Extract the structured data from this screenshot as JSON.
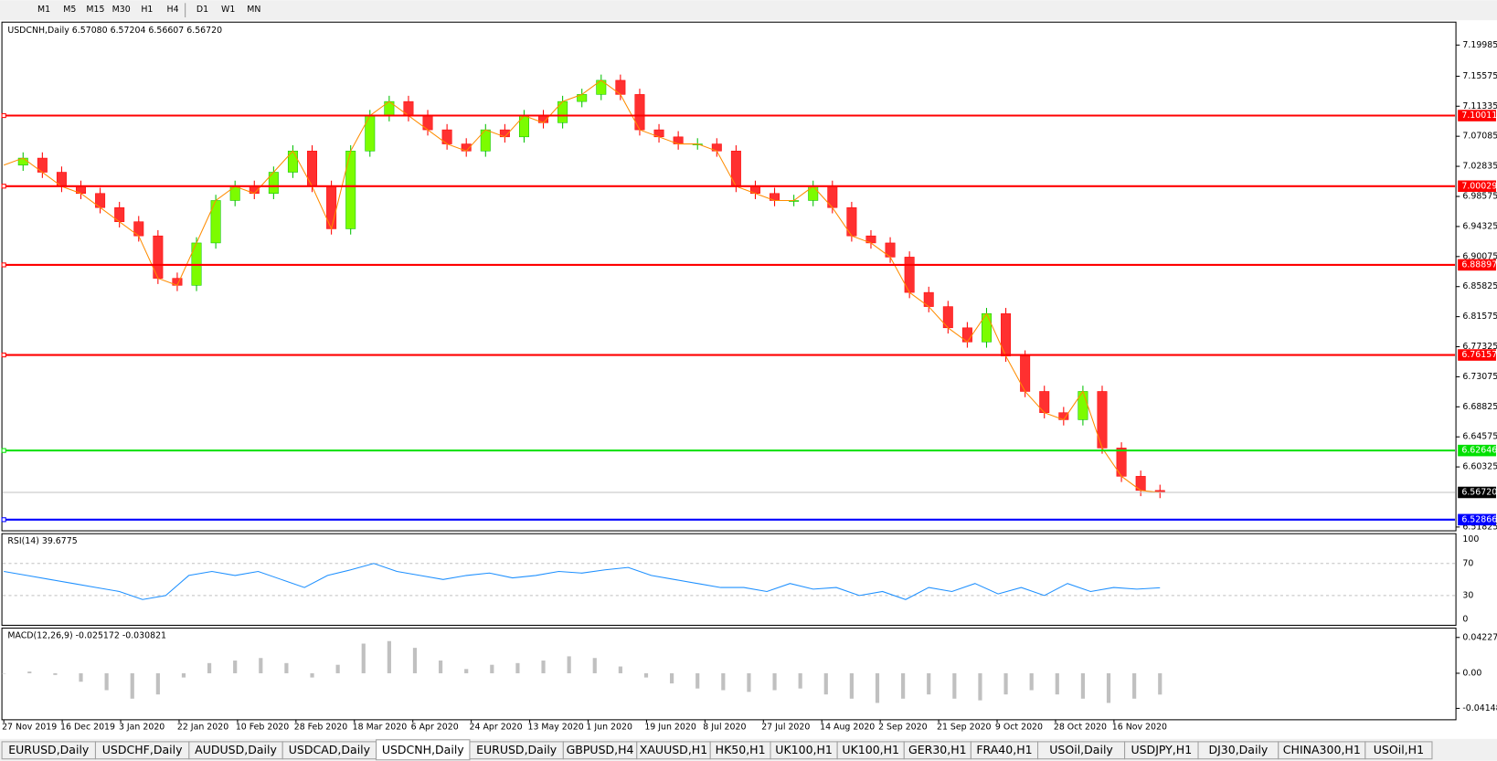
{
  "toolbar": {
    "timeframes": [
      "M1",
      "M5",
      "M15",
      "M30",
      "H1",
      "H4",
      "D1",
      "W1",
      "MN"
    ]
  },
  "chart": {
    "header": "USDCNH,Daily  6.57080 6.57204 6.56607 6.56720",
    "ylim": [
      6.5129,
      7.2309
    ],
    "yticks": [
      7.19985,
      7.15575,
      7.11335,
      7.07085,
      7.02835,
      6.98575,
      6.94325,
      6.90075,
      6.85825,
      6.81575,
      6.77325,
      6.73075,
      6.68825,
      6.64575,
      6.60325,
      6.51825
    ],
    "levels": [
      {
        "value": 7.10011,
        "color": "#ff0000"
      },
      {
        "value": 7.00029,
        "color": "#ff0000"
      },
      {
        "value": 6.88897,
        "color": "#ff0000"
      },
      {
        "value": 6.76157,
        "color": "#ff0000"
      },
      {
        "value": 6.62646,
        "color": "#00e000"
      },
      {
        "value": 6.52866,
        "color": "#0000ff"
      }
    ],
    "current_price": {
      "value": 6.5672,
      "label": "6.56720"
    },
    "closes": [
      7.03,
      7.04,
      7.02,
      7.0,
      6.99,
      6.97,
      6.95,
      6.93,
      6.87,
      6.86,
      6.92,
      6.98,
      7.0,
      6.99,
      7.02,
      7.05,
      7.0,
      6.94,
      7.05,
      7.1,
      7.12,
      7.1,
      7.08,
      7.06,
      7.05,
      7.08,
      7.07,
      7.1,
      7.09,
      7.12,
      7.13,
      7.15,
      7.13,
      7.08,
      7.07,
      7.06,
      7.06,
      7.05,
      7.0,
      6.99,
      6.98,
      6.98,
      7.0,
      6.97,
      6.93,
      6.92,
      6.9,
      6.85,
      6.83,
      6.8,
      6.78,
      6.82,
      6.76,
      6.71,
      6.68,
      6.67,
      6.71,
      6.63,
      6.59,
      6.57,
      6.5672
    ],
    "x_labels": [
      "27 Nov 2019",
      "16 Dec 2019",
      "3 Jan 2020",
      "22 Jan 2020",
      "10 Feb 2020",
      "28 Feb 2020",
      "18 Mar 2020",
      "6 Apr 2020",
      "24 Apr 2020",
      "13 May 2020",
      "1 Jun 2020",
      "19 Jun 2020",
      "8 Jul 2020",
      "27 Jul 2020",
      "14 Aug 2020",
      "2 Sep 2020",
      "21 Sep 2020",
      "9 Oct 2020",
      "28 Oct 2020",
      "16 Nov 2020"
    ]
  },
  "rsi": {
    "header": "RSI(14) 39.6775",
    "ylim": [
      0,
      100
    ],
    "yticks": [
      100,
      70,
      30,
      0
    ],
    "values": [
      60,
      55,
      50,
      45,
      40,
      35,
      25,
      30,
      55,
      60,
      55,
      60,
      50,
      40,
      55,
      62,
      70,
      60,
      55,
      50,
      55,
      58,
      52,
      55,
      60,
      58,
      62,
      65,
      55,
      50,
      45,
      40,
      40,
      35,
      45,
      38,
      40,
      30,
      35,
      25,
      40,
      35,
      45,
      32,
      40,
      30,
      45,
      35,
      40,
      38,
      39.6775
    ]
  },
  "macd": {
    "header": "MACD(12,26,9) -0.025172 -0.030821",
    "ylim": [
      -0.0459,
      0.0465
    ],
    "yticks": [
      0.042275,
      {
        "value": 0,
        "label": "0.00"
      },
      -0.04148
    ],
    "values": [
      0,
      0.002,
      -0.002,
      -0.01,
      -0.02,
      -0.03,
      -0.025,
      -0.005,
      0.012,
      0.015,
      0.018,
      0.012,
      -0.005,
      0.01,
      0.035,
      0.038,
      0.03,
      0.015,
      0.005,
      0.01,
      0.012,
      0.015,
      0.02,
      0.018,
      0.008,
      -0.005,
      -0.012,
      -0.018,
      -0.02,
      -0.022,
      -0.02,
      -0.018,
      -0.025,
      -0.03,
      -0.035,
      -0.03,
      -0.025,
      -0.03,
      -0.032,
      -0.025,
      -0.02,
      -0.025,
      -0.03,
      -0.035,
      -0.03,
      -0.025172
    ]
  },
  "tabs": [
    "EURUSD,Daily",
    "USDCHF,Daily",
    "AUDUSD,Daily",
    "USDCAD,Daily",
    "USDCNH,Daily",
    "EURUSD,Daily",
    "GBPUSD,H4",
    "XAUUSD,H1",
    "HK50,H1",
    "UK100,H1",
    "UK100,H1",
    "GER30,H1",
    "FRA40,H1",
    "USOil,Daily",
    "USDJPY,H1",
    "DJ30,Daily",
    "CHINA300,H1",
    "USOil,H1"
  ]
}
